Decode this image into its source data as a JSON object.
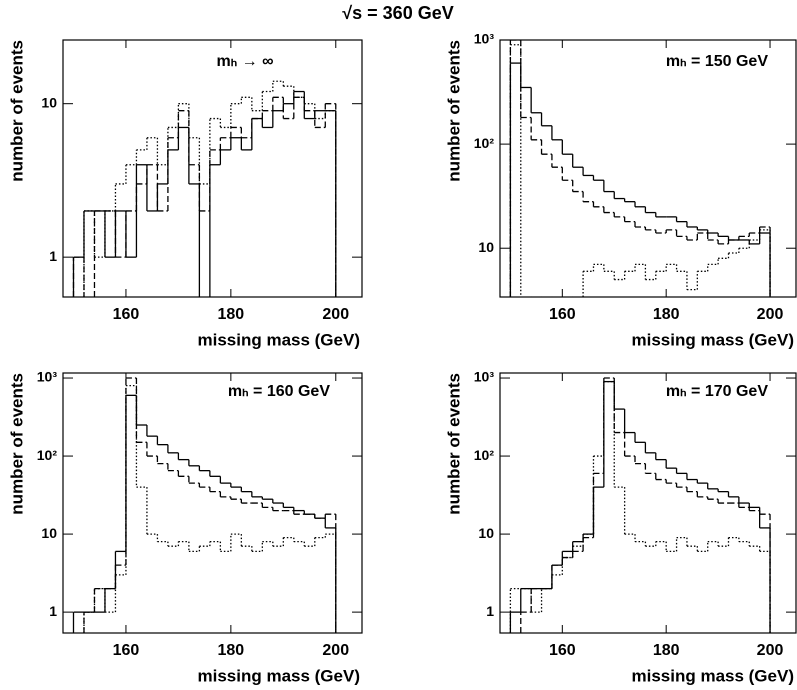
{
  "title": "√s = 360 GeV",
  "chart_data": [
    {
      "type": "histogram",
      "annotation": "mₕ → ∞",
      "xlabel": "missing mass (GeV)",
      "ylabel": "number of events",
      "log_y": true,
      "xlim": [
        148,
        205
      ],
      "ylim": [
        0.55,
        26
      ],
      "xticks": [
        160,
        180,
        200
      ],
      "yticks": [
        1,
        10
      ],
      "bins": [
        150,
        152,
        154,
        156,
        158,
        160,
        162,
        164,
        166,
        168,
        170,
        172,
        174,
        176,
        178,
        180,
        182,
        184,
        186,
        188,
        190,
        192,
        194,
        196,
        198,
        200
      ],
      "series": [
        {
          "linestyle": "solid",
          "color": "#000000",
          "values": [
            1,
            2,
            2,
            1,
            2,
            1,
            4,
            2,
            3,
            5,
            7,
            3,
            null,
            4,
            5,
            6,
            5,
            8,
            7,
            9,
            10,
            12,
            8,
            9,
            9
          ]
        },
        {
          "linestyle": "dashed",
          "color": "#000000",
          "values": [
            1,
            null,
            2,
            2,
            1,
            2,
            3,
            4,
            2,
            6,
            9,
            4,
            2,
            5,
            6,
            7,
            6,
            8,
            9,
            11,
            8,
            11,
            9,
            7,
            10
          ]
        },
        {
          "linestyle": "dotted",
          "color": "#000000",
          "values": [
            null,
            2,
            1,
            2,
            3,
            4,
            5,
            6,
            4,
            7,
            10,
            6,
            3,
            8,
            7,
            10,
            11,
            9,
            12,
            14,
            13,
            11,
            10,
            8,
            9
          ]
        }
      ]
    },
    {
      "type": "histogram",
      "annotation": "mₕ = 150 GeV",
      "xlabel": "missing mass (GeV)",
      "ylabel": "number of events",
      "log_y": true,
      "xlim": [
        148,
        205
      ],
      "ylim": [
        3.4,
        1000
      ],
      "xticks": [
        160,
        180,
        200
      ],
      "yticks": [
        10,
        {
          "value": 100,
          "label": "10²"
        },
        {
          "value": 1000,
          "label": "10³"
        }
      ],
      "bins": [
        150,
        152,
        154,
        156,
        158,
        160,
        162,
        164,
        166,
        168,
        170,
        172,
        174,
        176,
        178,
        180,
        182,
        184,
        186,
        188,
        190,
        192,
        194,
        196,
        198,
        200
      ],
      "series": [
        {
          "linestyle": "solid",
          "color": "#000000",
          "values": [
            600,
            350,
            200,
            150,
            110,
            80,
            60,
            50,
            45,
            35,
            30,
            28,
            25,
            22,
            20,
            20,
            18,
            16,
            15,
            14,
            13,
            12,
            12,
            11,
            14
          ]
        },
        {
          "linestyle": "dashed",
          "color": "#000000",
          "values": [
            1000,
            180,
            110,
            80,
            60,
            45,
            35,
            28,
            25,
            22,
            20,
            18,
            16,
            15,
            14,
            15,
            13,
            12,
            14,
            12,
            11,
            12,
            13,
            14,
            16
          ]
        },
        {
          "linestyle": "dotted",
          "color": "#000000",
          "values": [
            900,
            null,
            null,
            null,
            null,
            null,
            null,
            6,
            7,
            6,
            5,
            6,
            7,
            5,
            6,
            7,
            6,
            4,
            6,
            7,
            8,
            9,
            10,
            12,
            15
          ]
        }
      ]
    },
    {
      "type": "histogram",
      "annotation": "mₕ = 160 GeV",
      "xlabel": "missing mass (GeV)",
      "ylabel": "number of events",
      "log_y": true,
      "xlim": [
        148,
        205
      ],
      "ylim": [
        0.54,
        1160
      ],
      "xticks": [
        160,
        180,
        200
      ],
      "yticks": [
        1,
        10,
        {
          "value": 100,
          "label": "10²"
        },
        {
          "value": 1000,
          "label": "10³"
        }
      ],
      "bins": [
        150,
        152,
        154,
        156,
        158,
        160,
        162,
        164,
        166,
        168,
        170,
        172,
        174,
        176,
        178,
        180,
        182,
        184,
        186,
        188,
        190,
        192,
        194,
        196,
        198,
        200
      ],
      "series": [
        {
          "linestyle": "solid",
          "color": "#000000",
          "values": [
            1,
            1,
            1,
            2,
            6,
            600,
            250,
            180,
            140,
            110,
            90,
            75,
            65,
            55,
            45,
            40,
            35,
            30,
            28,
            25,
            22,
            20,
            18,
            16,
            12
          ]
        },
        {
          "linestyle": "dashed",
          "color": "#000000",
          "values": [
            null,
            1,
            2,
            2,
            4,
            1000,
            150,
            100,
            80,
            65,
            55,
            45,
            40,
            35,
            30,
            28,
            25,
            25,
            22,
            20,
            20,
            18,
            18,
            16,
            18
          ]
        },
        {
          "linestyle": "dotted",
          "color": "#000000",
          "values": [
            null,
            1,
            2,
            1,
            3,
            800,
            40,
            10,
            8,
            7,
            8,
            6,
            7,
            8,
            6,
            10,
            7,
            6,
            8,
            7,
            9,
            8,
            7,
            9,
            10
          ]
        }
      ]
    },
    {
      "type": "histogram",
      "annotation": "mₕ = 170 GeV",
      "xlabel": "missing mass (GeV)",
      "ylabel": "number of events",
      "log_y": true,
      "xlim": [
        148,
        205
      ],
      "ylim": [
        0.54,
        1160
      ],
      "xticks": [
        160,
        180,
        200
      ],
      "yticks": [
        1,
        10,
        {
          "value": 100,
          "label": "10²"
        },
        {
          "value": 1000,
          "label": "10³"
        }
      ],
      "bins": [
        150,
        152,
        154,
        156,
        158,
        160,
        162,
        164,
        166,
        168,
        170,
        172,
        174,
        176,
        178,
        180,
        182,
        184,
        186,
        188,
        190,
        192,
        194,
        196,
        198,
        200
      ],
      "series": [
        {
          "linestyle": "solid",
          "color": "#000000",
          "values": [
            1,
            2,
            2,
            2,
            4,
            6,
            8,
            10,
            40,
            900,
            400,
            200,
            150,
            110,
            90,
            70,
            60,
            50,
            45,
            38,
            35,
            30,
            25,
            22,
            12
          ]
        },
        {
          "linestyle": "dashed",
          "color": "#000000",
          "values": [
            null,
            1,
            2,
            2,
            4,
            5,
            6,
            9,
            60,
            1000,
            200,
            100,
            80,
            60,
            50,
            45,
            40,
            35,
            30,
            28,
            25,
            25,
            22,
            20,
            18
          ]
        },
        {
          "linestyle": "dotted",
          "color": "#000000",
          "values": [
            2,
            2,
            1,
            2,
            3,
            5,
            7,
            10,
            100,
            900,
            40,
            10,
            8,
            7,
            8,
            6,
            9,
            7,
            6,
            8,
            7,
            9,
            8,
            7,
            6
          ]
        }
      ]
    }
  ]
}
